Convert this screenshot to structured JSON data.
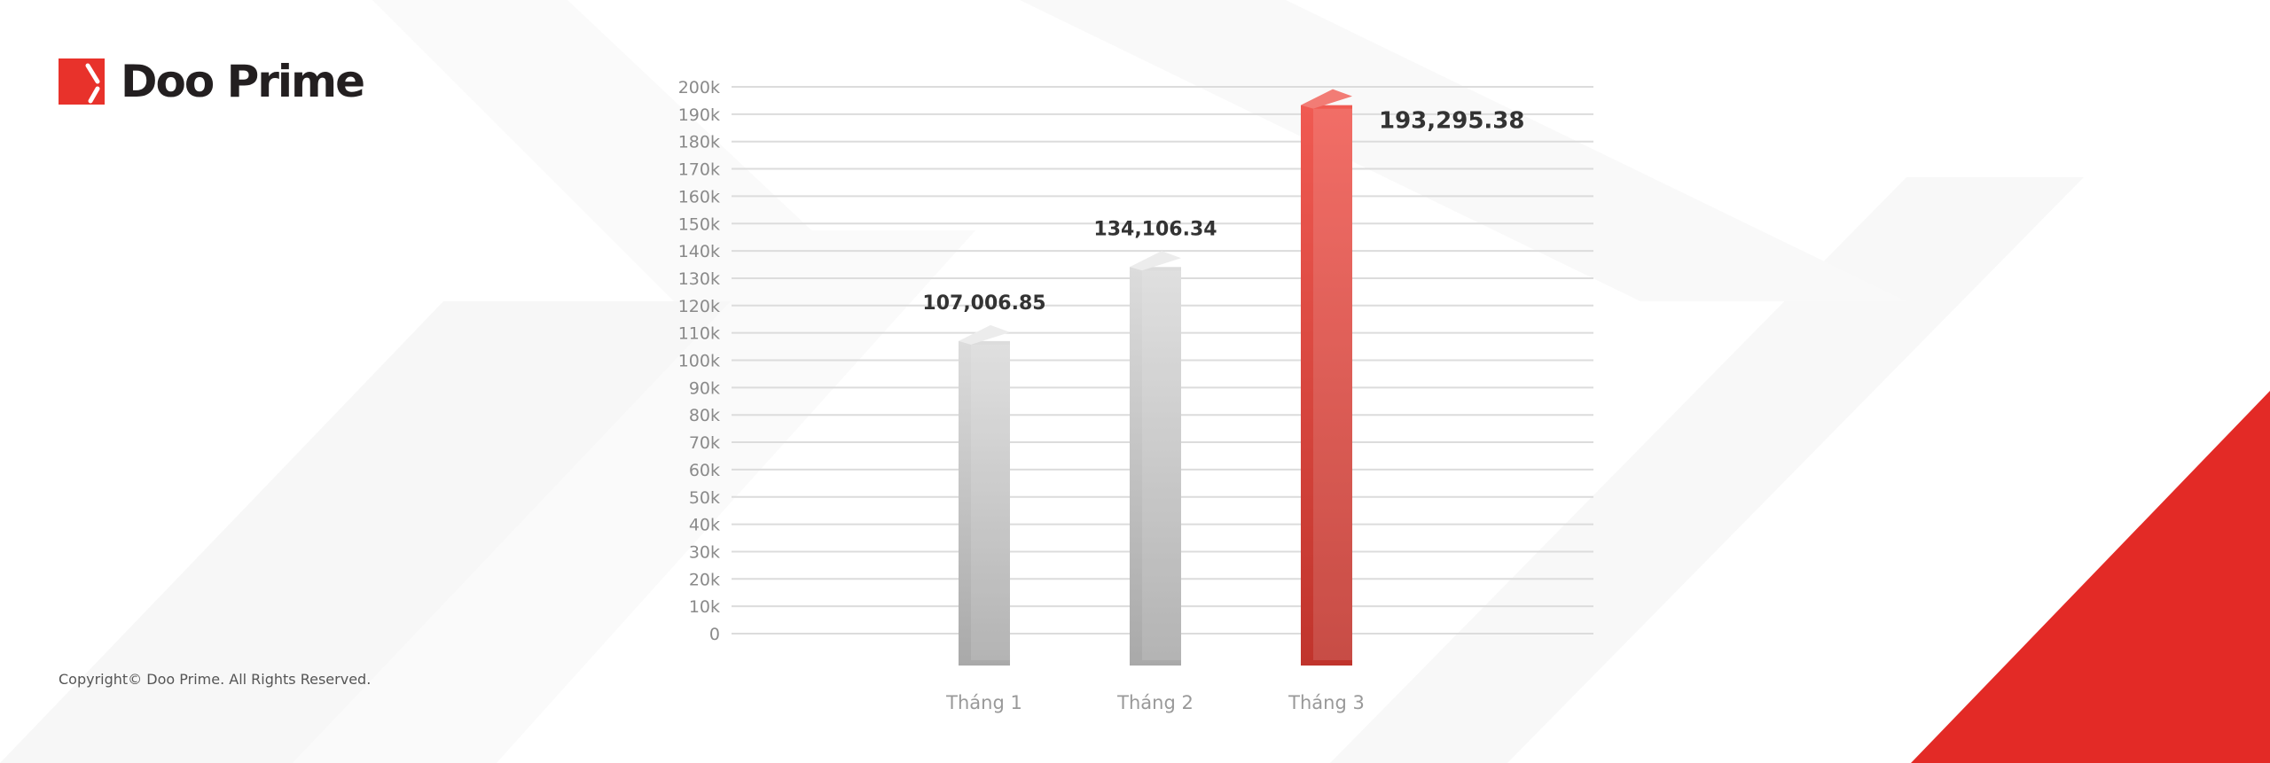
{
  "brand": {
    "name": "Doo Prime",
    "accent": "#e8322b"
  },
  "footer": {
    "copyright": "Copyright© Doo Prime. All Rights Reserved."
  },
  "chart_data": {
    "type": "bar",
    "categories": [
      "Tháng 1",
      "Tháng 2",
      "Tháng 3"
    ],
    "values": [
      107006.85,
      134106.34,
      193295.38
    ],
    "data_labels": [
      "107,006.85",
      "134,106.34",
      "193,295.38"
    ],
    "ylim": [
      0,
      200000
    ],
    "yticks": [
      0,
      10000,
      20000,
      30000,
      40000,
      50000,
      60000,
      70000,
      80000,
      90000,
      100000,
      110000,
      120000,
      130000,
      140000,
      150000,
      160000,
      170000,
      180000,
      190000,
      200000
    ],
    "ytick_labels": [
      "0",
      "10k",
      "20k",
      "30k",
      "40k",
      "50k",
      "60k",
      "70k",
      "80k",
      "90k",
      "100k",
      "110k",
      "120k",
      "130k",
      "140k",
      "150k",
      "160k",
      "170k",
      "180k",
      "190k",
      "200k"
    ],
    "grid": true,
    "bar_colors": [
      "#c8c8c8",
      "#c8c8c8",
      "#e8322b"
    ],
    "highlight_label_color": "#e8322b"
  }
}
